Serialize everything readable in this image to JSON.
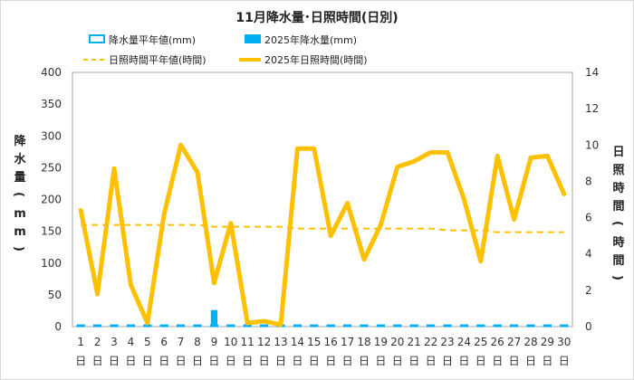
{
  "chart_data": {
    "type": "bar+line",
    "title": "11月降水量･日照時間(日別)",
    "categories": [
      "1",
      "2",
      "3",
      "4",
      "5",
      "6",
      "7",
      "8",
      "9",
      "10",
      "11",
      "12",
      "13",
      "14",
      "15",
      "16",
      "17",
      "18",
      "19",
      "20",
      "21",
      "22",
      "23",
      "24",
      "25",
      "26",
      "27",
      "28",
      "29",
      "30"
    ],
    "category_suffix": "日",
    "left_axis": {
      "label": "降水量(mm)",
      "ylim": [
        0,
        400
      ],
      "ticks": [
        0,
        50,
        100,
        150,
        200,
        250,
        300,
        350,
        400
      ]
    },
    "right_axis": {
      "label": "日照時間(時間)",
      "ylim": [
        0,
        14
      ],
      "ticks": [
        0,
        2,
        4,
        6,
        8,
        10,
        12,
        14
      ]
    },
    "series": [
      {
        "name": "降水量平年値(mm)",
        "type": "bar",
        "axis": "left",
        "style": "outline",
        "color": "#00b0f0",
        "values": [
          3.5,
          3.5,
          3.5,
          3.5,
          3.5,
          3.5,
          3.5,
          3.5,
          3.5,
          3.5,
          3.5,
          3.5,
          3.5,
          3.5,
          3.5,
          3.5,
          3.5,
          3.5,
          3.5,
          3.5,
          3.5,
          3.5,
          3.5,
          3.5,
          3.5,
          3.5,
          3.5,
          3.5,
          3.5,
          3.5
        ]
      },
      {
        "name": "2025年降水量(mm)",
        "type": "bar",
        "axis": "left",
        "style": "filled",
        "color": "#00b0f0",
        "values": [
          0,
          0,
          0,
          0,
          0,
          1.5,
          0,
          0,
          26,
          0,
          0,
          0,
          0,
          0,
          0,
          0,
          0,
          0,
          0,
          0,
          0,
          0,
          0,
          0,
          0,
          0,
          0,
          0,
          0,
          0
        ]
      },
      {
        "name": "日照時間平年値(時間)",
        "type": "line",
        "axis": "right",
        "style": "dashed",
        "color": "#ffc000",
        "values": [
          5.6,
          5.6,
          5.6,
          5.6,
          5.6,
          5.6,
          5.6,
          5.6,
          5.5,
          5.5,
          5.5,
          5.5,
          5.5,
          5.4,
          5.4,
          5.4,
          5.4,
          5.4,
          5.4,
          5.4,
          5.4,
          5.4,
          5.3,
          5.3,
          5.3,
          5.2,
          5.2,
          5.2,
          5.2,
          5.2
        ]
      },
      {
        "name": "2025年日照時間(時間)",
        "type": "line",
        "axis": "right",
        "style": "solid",
        "color": "#ffc000",
        "values": [
          6.4,
          1.8,
          8.7,
          2.3,
          0.2,
          6.2,
          10.0,
          8.5,
          2.4,
          5.7,
          0.2,
          0.3,
          0.1,
          9.8,
          9.8,
          5.0,
          6.8,
          3.7,
          5.6,
          8.8,
          9.1,
          9.6,
          9.6,
          7.0,
          3.6,
          9.4,
          5.9,
          9.3,
          9.4,
          7.3
        ]
      }
    ],
    "legend_position": "top",
    "grid": false
  }
}
